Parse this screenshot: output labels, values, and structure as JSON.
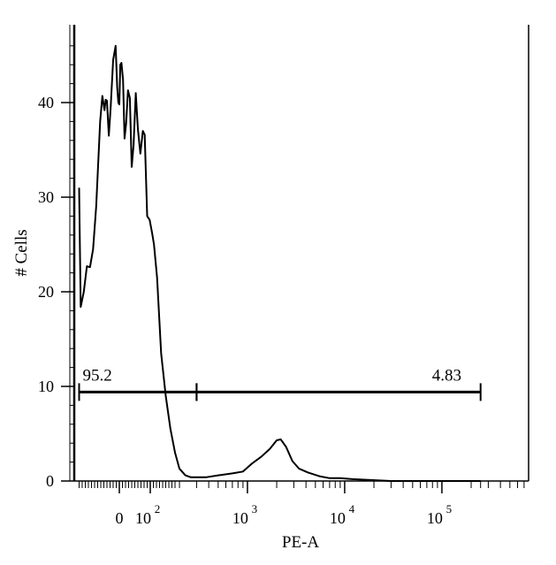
{
  "chart_data": {
    "type": "line",
    "title": "",
    "xlabel": "PE-A",
    "ylabel": "# Cells",
    "x_scale": "biexponential",
    "x_tick_labels": [
      {
        "value": 0,
        "label": "0"
      },
      {
        "value": 100,
        "base": "10",
        "exp": "2"
      },
      {
        "value": 1000,
        "base": "10",
        "exp": "3"
      },
      {
        "value": 10000,
        "base": "10",
        "exp": "4"
      },
      {
        "value": 100000,
        "base": "10",
        "exp": "5"
      }
    ],
    "y_ticks": [
      0,
      10,
      20,
      30,
      40
    ],
    "ylim": [
      0,
      48
    ],
    "grid": false,
    "legend": "none",
    "series": [
      {
        "x": [
          -130,
          -125,
          -115,
          -105,
          -95,
          -85,
          -75,
          -62,
          -55,
          -48,
          -44,
          -40,
          -34,
          -28,
          -20,
          -12,
          -7,
          -3,
          0,
          3,
          7,
          12,
          17,
          22,
          28,
          34,
          40,
          46,
          53,
          60,
          68,
          76,
          82,
          90,
          98,
          106,
          112,
          122,
          135,
          150,
          165,
          180,
          200,
          230,
          260,
          300,
          380,
          500,
          700,
          900,
          1100,
          1400,
          1700,
          2000,
          2200,
          2500,
          2900,
          3400,
          4200,
          5500,
          7000,
          9000,
          12000,
          30000,
          100000,
          250000
        ],
        "y": [
          31,
          18.4,
          20,
          22.7,
          22.6,
          24.5,
          29,
          38,
          40.7,
          39.2,
          40.3,
          40.2,
          36.5,
          39.5,
          44.5,
          46,
          41.6,
          40,
          39.8,
          44,
          44.2,
          42.4,
          36.2,
          37.8,
          41.3,
          40.5,
          33.2,
          35.5,
          41,
          37.2,
          34.6,
          37,
          36.6,
          28,
          27.6,
          26.2,
          25,
          21.5,
          13.5,
          9,
          5.5,
          3,
          1.3,
          0.6,
          0.4,
          0.4,
          0.4,
          0.6,
          0.8,
          1,
          1.8,
          2.6,
          3.4,
          4.3,
          4.4,
          3.6,
          2.1,
          1.3,
          0.9,
          0.5,
          0.3,
          0.3,
          0.2,
          0,
          0,
          0
        ]
      }
    ],
    "gates": [
      {
        "label": "95.2",
        "x_range": [
          -130,
          300
        ],
        "y": 9.4
      },
      {
        "label": "4.83",
        "x_range": [
          300,
          250000
        ],
        "y": 9.4
      }
    ]
  }
}
